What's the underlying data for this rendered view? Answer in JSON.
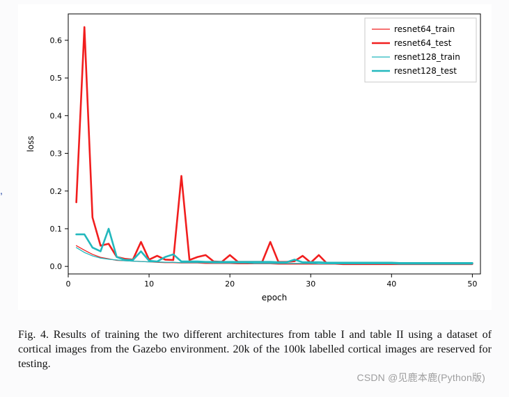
{
  "figure": {
    "type": "line",
    "xlabel": "epoch",
    "ylabel": "loss",
    "label_fontsize": 12,
    "tick_fontsize": 11,
    "background_color": "#ffffff",
    "axis_color": "#000000",
    "xlim": [
      0,
      51
    ],
    "ylim": [
      -0.02,
      0.67
    ],
    "xticks": [
      0,
      10,
      20,
      30,
      40,
      50
    ],
    "yticks": [
      0.0,
      0.1,
      0.2,
      0.3,
      0.4,
      0.5,
      0.6
    ],
    "linewidths": {
      "train": 1.3,
      "test": 2.6
    },
    "legend": {
      "border_color": "#c8c8c8",
      "bg_color": "#ffffff",
      "fontsize": 12,
      "items": [
        {
          "label": "resnet64_train",
          "color": "#f11e1e",
          "width": 1.3
        },
        {
          "label": "resnet64_test",
          "color": "#f11e1e",
          "width": 2.6
        },
        {
          "label": "resnet128_train",
          "color": "#22b8bd",
          "width": 1.3
        },
        {
          "label": "resnet128_test",
          "color": "#22b8bd",
          "width": 2.6
        }
      ]
    },
    "series": [
      {
        "name": "resnet64_train",
        "color": "#f11e1e",
        "width": 1.3,
        "x": [
          1,
          2,
          3,
          4,
          5,
          6,
          7,
          8,
          9,
          10,
          11,
          12,
          13,
          14,
          15,
          16,
          17,
          18,
          19,
          20,
          21,
          22,
          23,
          24,
          25,
          26,
          27,
          28,
          29,
          30,
          31,
          32,
          33,
          34,
          35,
          36,
          37,
          38,
          39,
          40,
          41,
          42,
          43,
          44,
          45,
          46,
          47,
          48,
          49,
          50
        ],
        "y": [
          0.055,
          0.043,
          0.032,
          0.024,
          0.02,
          0.016,
          0.015,
          0.014,
          0.013,
          0.012,
          0.011,
          0.01,
          0.01,
          0.009,
          0.009,
          0.009,
          0.008,
          0.008,
          0.008,
          0.008,
          0.007,
          0.007,
          0.007,
          0.007,
          0.007,
          0.006,
          0.006,
          0.006,
          0.006,
          0.006,
          0.006,
          0.006,
          0.006,
          0.005,
          0.005,
          0.005,
          0.005,
          0.005,
          0.005,
          0.005,
          0.005,
          0.005,
          0.005,
          0.005,
          0.005,
          0.005,
          0.005,
          0.005,
          0.005,
          0.005
        ]
      },
      {
        "name": "resnet64_test",
        "color": "#f11e1e",
        "width": 2.6,
        "x": [
          1,
          2,
          3,
          4,
          5,
          6,
          7,
          8,
          9,
          10,
          11,
          12,
          13,
          14,
          15,
          16,
          17,
          18,
          19,
          20,
          21,
          22,
          23,
          24,
          25,
          26,
          27,
          28,
          29,
          30,
          31,
          32,
          33,
          34,
          35,
          36,
          37,
          38,
          39,
          40,
          41,
          42,
          43,
          44,
          45,
          46,
          47,
          48,
          49,
          50
        ],
        "y": [
          0.17,
          0.635,
          0.13,
          0.055,
          0.06,
          0.025,
          0.02,
          0.018,
          0.065,
          0.018,
          0.028,
          0.018,
          0.017,
          0.24,
          0.017,
          0.025,
          0.03,
          0.013,
          0.012,
          0.03,
          0.012,
          0.012,
          0.012,
          0.012,
          0.065,
          0.012,
          0.012,
          0.014,
          0.028,
          0.01,
          0.03,
          0.008,
          0.008,
          0.008,
          0.008,
          0.008,
          0.008,
          0.008,
          0.008,
          0.008,
          0.008,
          0.008,
          0.008,
          0.008,
          0.008,
          0.008,
          0.007,
          0.007,
          0.007,
          0.007
        ]
      },
      {
        "name": "resnet128_train",
        "color": "#22b8bd",
        "width": 1.3,
        "x": [
          1,
          2,
          3,
          4,
          5,
          6,
          7,
          8,
          9,
          10,
          11,
          12,
          13,
          14,
          15,
          16,
          17,
          18,
          19,
          20,
          21,
          22,
          23,
          24,
          25,
          26,
          27,
          28,
          29,
          30,
          31,
          32,
          33,
          34,
          35,
          36,
          37,
          38,
          39,
          40,
          41,
          42,
          43,
          44,
          45,
          46,
          47,
          48,
          49,
          50
        ],
        "y": [
          0.05,
          0.037,
          0.028,
          0.022,
          0.019,
          0.017,
          0.015,
          0.014,
          0.013,
          0.012,
          0.012,
          0.011,
          0.011,
          0.01,
          0.01,
          0.01,
          0.01,
          0.009,
          0.009,
          0.009,
          0.009,
          0.009,
          0.008,
          0.008,
          0.008,
          0.008,
          0.008,
          0.008,
          0.008,
          0.008,
          0.007,
          0.007,
          0.007,
          0.007,
          0.007,
          0.007,
          0.007,
          0.007,
          0.007,
          0.007,
          0.006,
          0.006,
          0.006,
          0.006,
          0.006,
          0.006,
          0.006,
          0.006,
          0.006,
          0.006
        ]
      },
      {
        "name": "resnet128_test",
        "color": "#22b8bd",
        "width": 2.6,
        "x": [
          1,
          2,
          3,
          4,
          5,
          6,
          7,
          8,
          9,
          10,
          11,
          12,
          13,
          14,
          15,
          16,
          17,
          18,
          19,
          20,
          21,
          22,
          23,
          24,
          25,
          26,
          27,
          28,
          29,
          30,
          31,
          32,
          33,
          34,
          35,
          36,
          37,
          38,
          39,
          40,
          41,
          42,
          43,
          44,
          45,
          46,
          47,
          48,
          49,
          50
        ],
        "y": [
          0.085,
          0.085,
          0.05,
          0.04,
          0.1,
          0.025,
          0.017,
          0.017,
          0.04,
          0.015,
          0.013,
          0.025,
          0.032,
          0.013,
          0.013,
          0.013,
          0.012,
          0.012,
          0.012,
          0.012,
          0.012,
          0.012,
          0.012,
          0.012,
          0.012,
          0.011,
          0.011,
          0.018,
          0.011,
          0.011,
          0.011,
          0.01,
          0.01,
          0.01,
          0.01,
          0.01,
          0.01,
          0.01,
          0.01,
          0.01,
          0.009,
          0.009,
          0.009,
          0.009,
          0.009,
          0.009,
          0.009,
          0.009,
          0.009,
          0.009
        ]
      }
    ]
  },
  "caption": "Fig. 4.   Results of training the two different architectures from table I and table II using a dataset of cortical images from the Gazebo environment. 20k of the 100k labelled cortical images are reserved for testing.",
  "watermark": "CSDN @见鹿本鹿(Python版)"
}
